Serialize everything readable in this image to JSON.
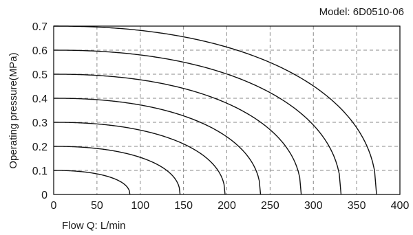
{
  "chart_data": {
    "type": "line",
    "model_label": "Model: 6D0510-06",
    "xlabel": "Flow Q: L/min",
    "ylabel": "Operating pressure(MPa)",
    "xlim": [
      0,
      400
    ],
    "ylim": [
      0,
      0.7
    ],
    "x_ticks": [
      0,
      50,
      100,
      150,
      200,
      250,
      300,
      350,
      400
    ],
    "y_ticks": [
      0,
      0.1,
      0.2,
      0.3,
      0.4,
      0.5,
      0.6,
      0.7
    ],
    "grid": "dashed",
    "legend": "none",
    "series": [
      {
        "start_pressure": 0.1,
        "max_flow": 88
      },
      {
        "start_pressure": 0.2,
        "max_flow": 146
      },
      {
        "start_pressure": 0.3,
        "max_flow": 198
      },
      {
        "start_pressure": 0.4,
        "max_flow": 239
      },
      {
        "start_pressure": 0.5,
        "max_flow": 286
      },
      {
        "start_pressure": 0.6,
        "max_flow": 332
      },
      {
        "start_pressure": 0.7,
        "max_flow": 373
      }
    ]
  }
}
